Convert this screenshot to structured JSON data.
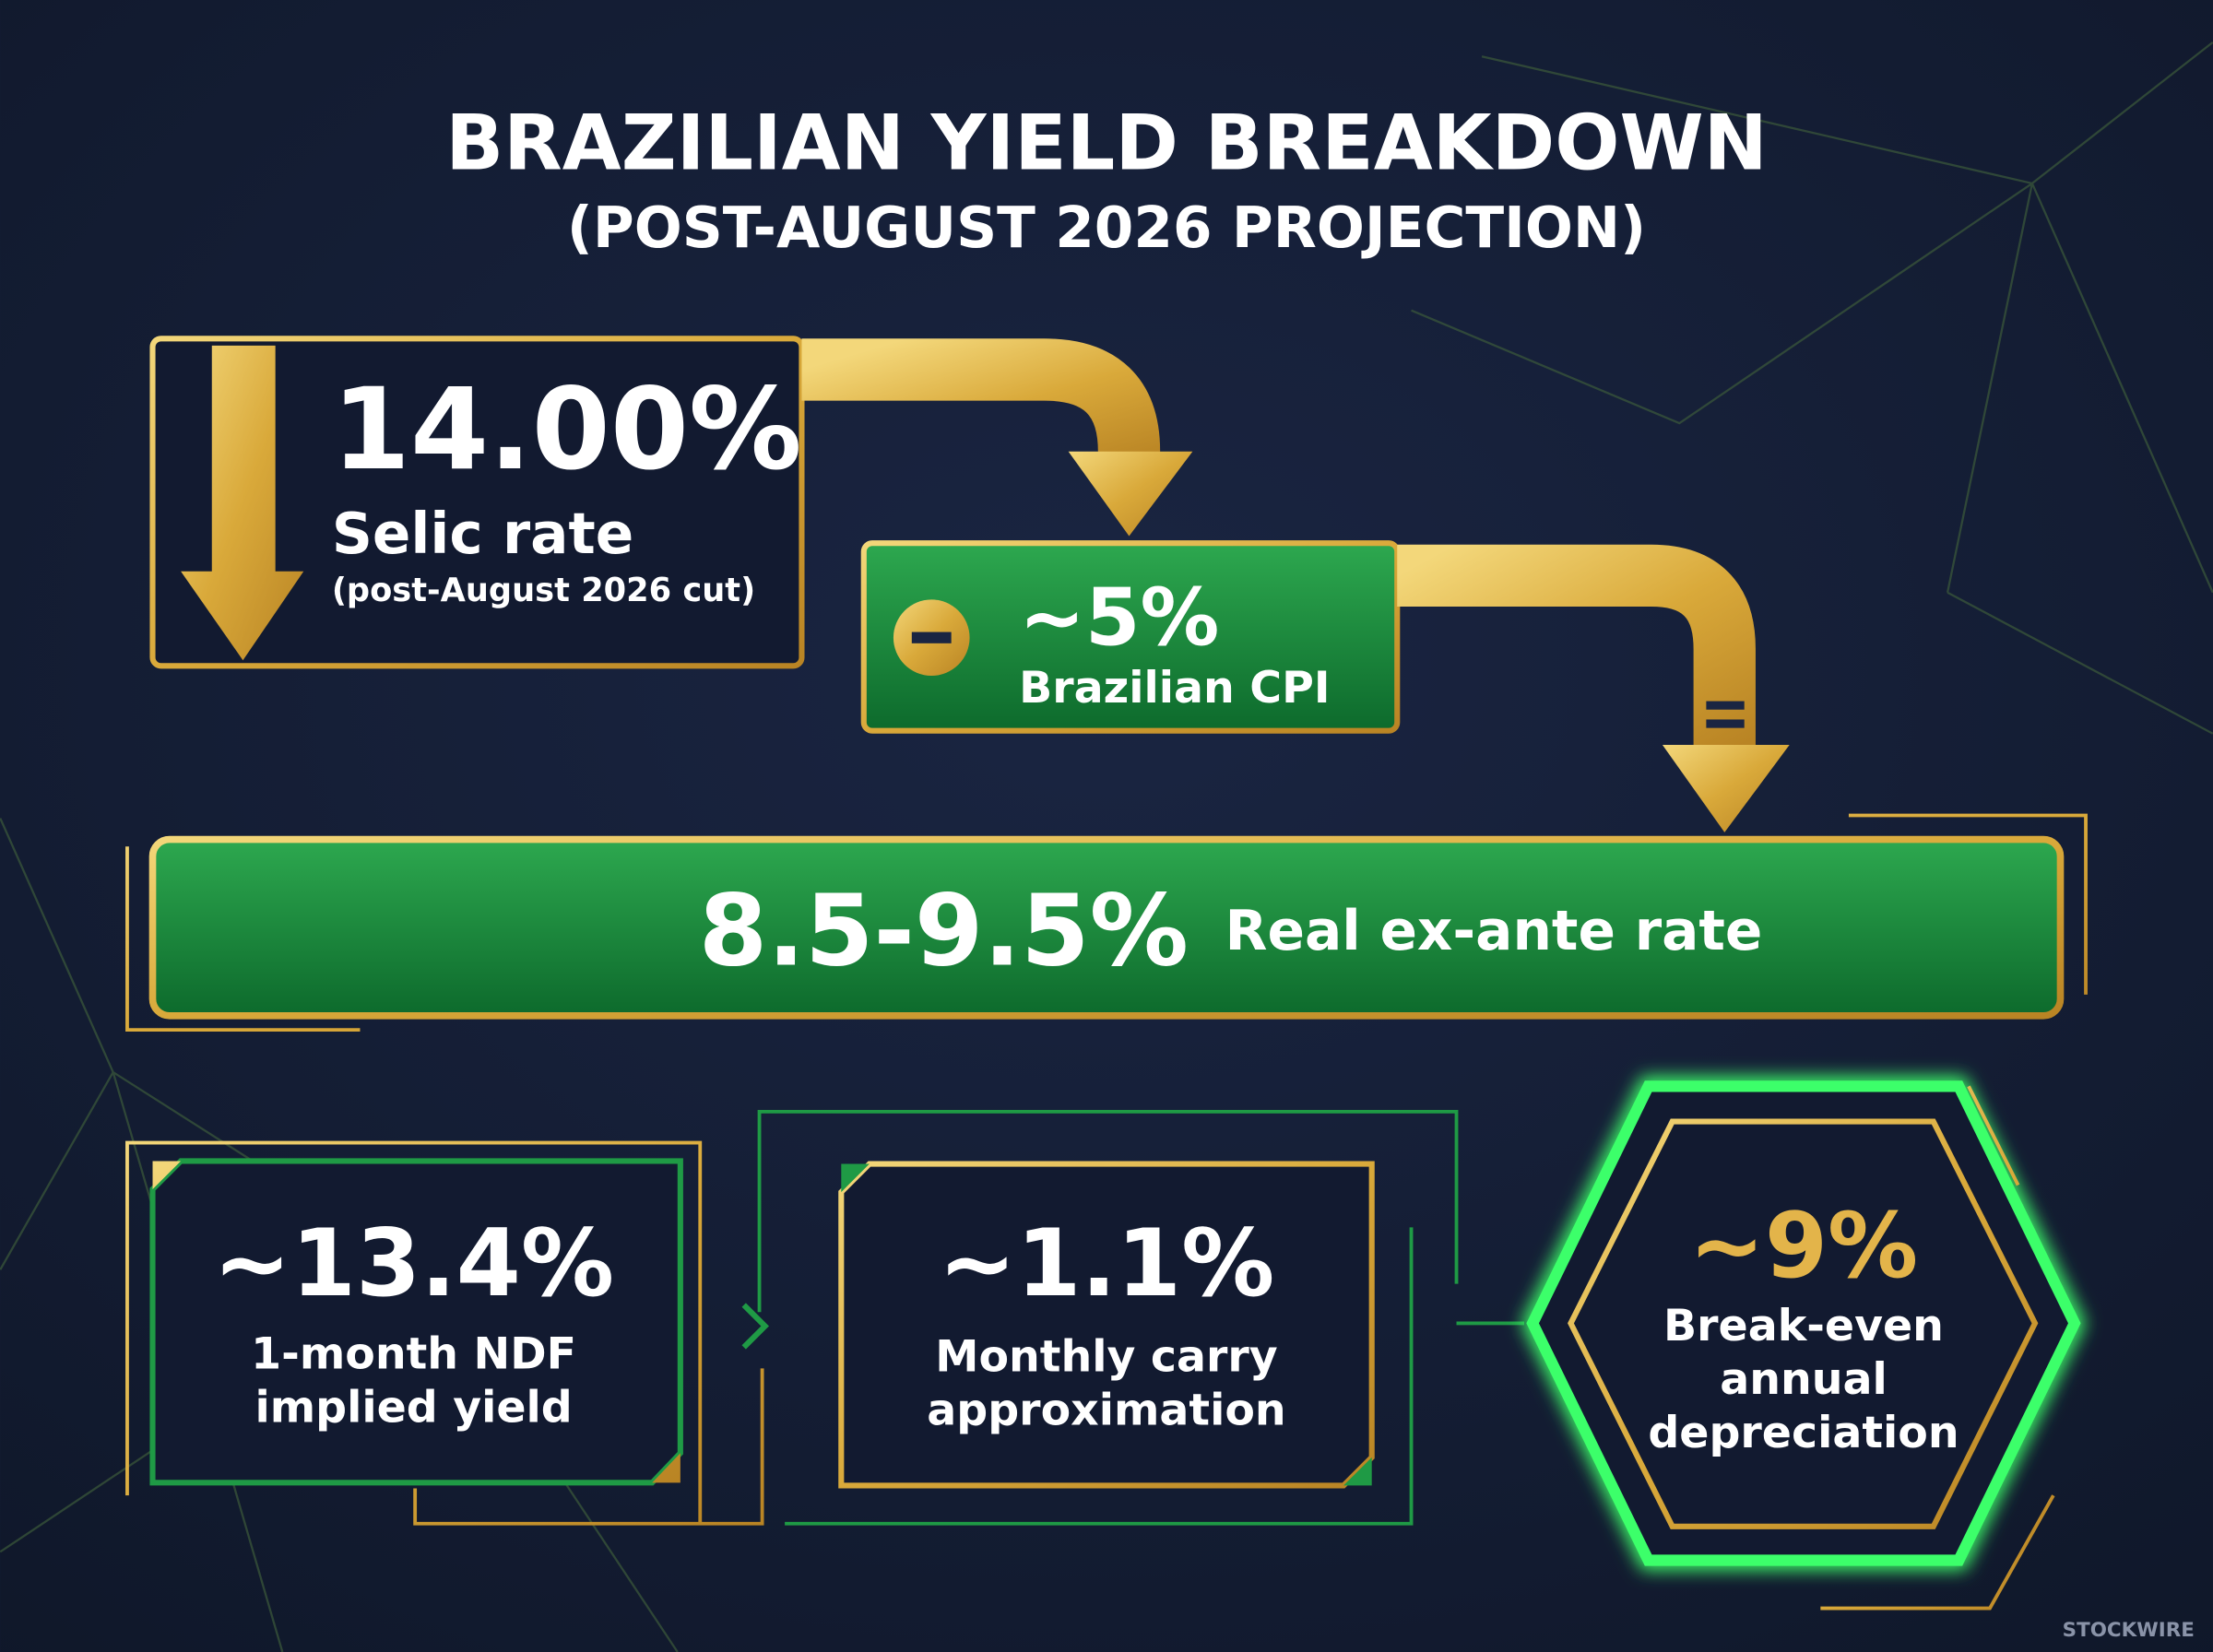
{
  "title": "BRAZILIAN YIELD BREAKDOWN",
  "subtitle": "(POST-AUGUST 2026 PROJECTION)",
  "selic": {
    "value": "14.00%",
    "label": "Selic rate",
    "note": "(post-August 2026 cut)"
  },
  "cpi": {
    "value": "~5%",
    "label": "Brazilian CPI"
  },
  "real_rate": {
    "value": "8.5-9.5%",
    "label": "Real ex-ante rate"
  },
  "ndf": {
    "value": "~13.4%",
    "label": [
      "1-month NDF",
      "implied yield"
    ]
  },
  "carry": {
    "value": "~1.1%",
    "label": [
      "Monthly carry",
      "approximation"
    ]
  },
  "breakeven": {
    "value": "~9%",
    "label": [
      "Break-even",
      "annual",
      "depreciation"
    ]
  },
  "watermark": "STOCKWIRE"
}
